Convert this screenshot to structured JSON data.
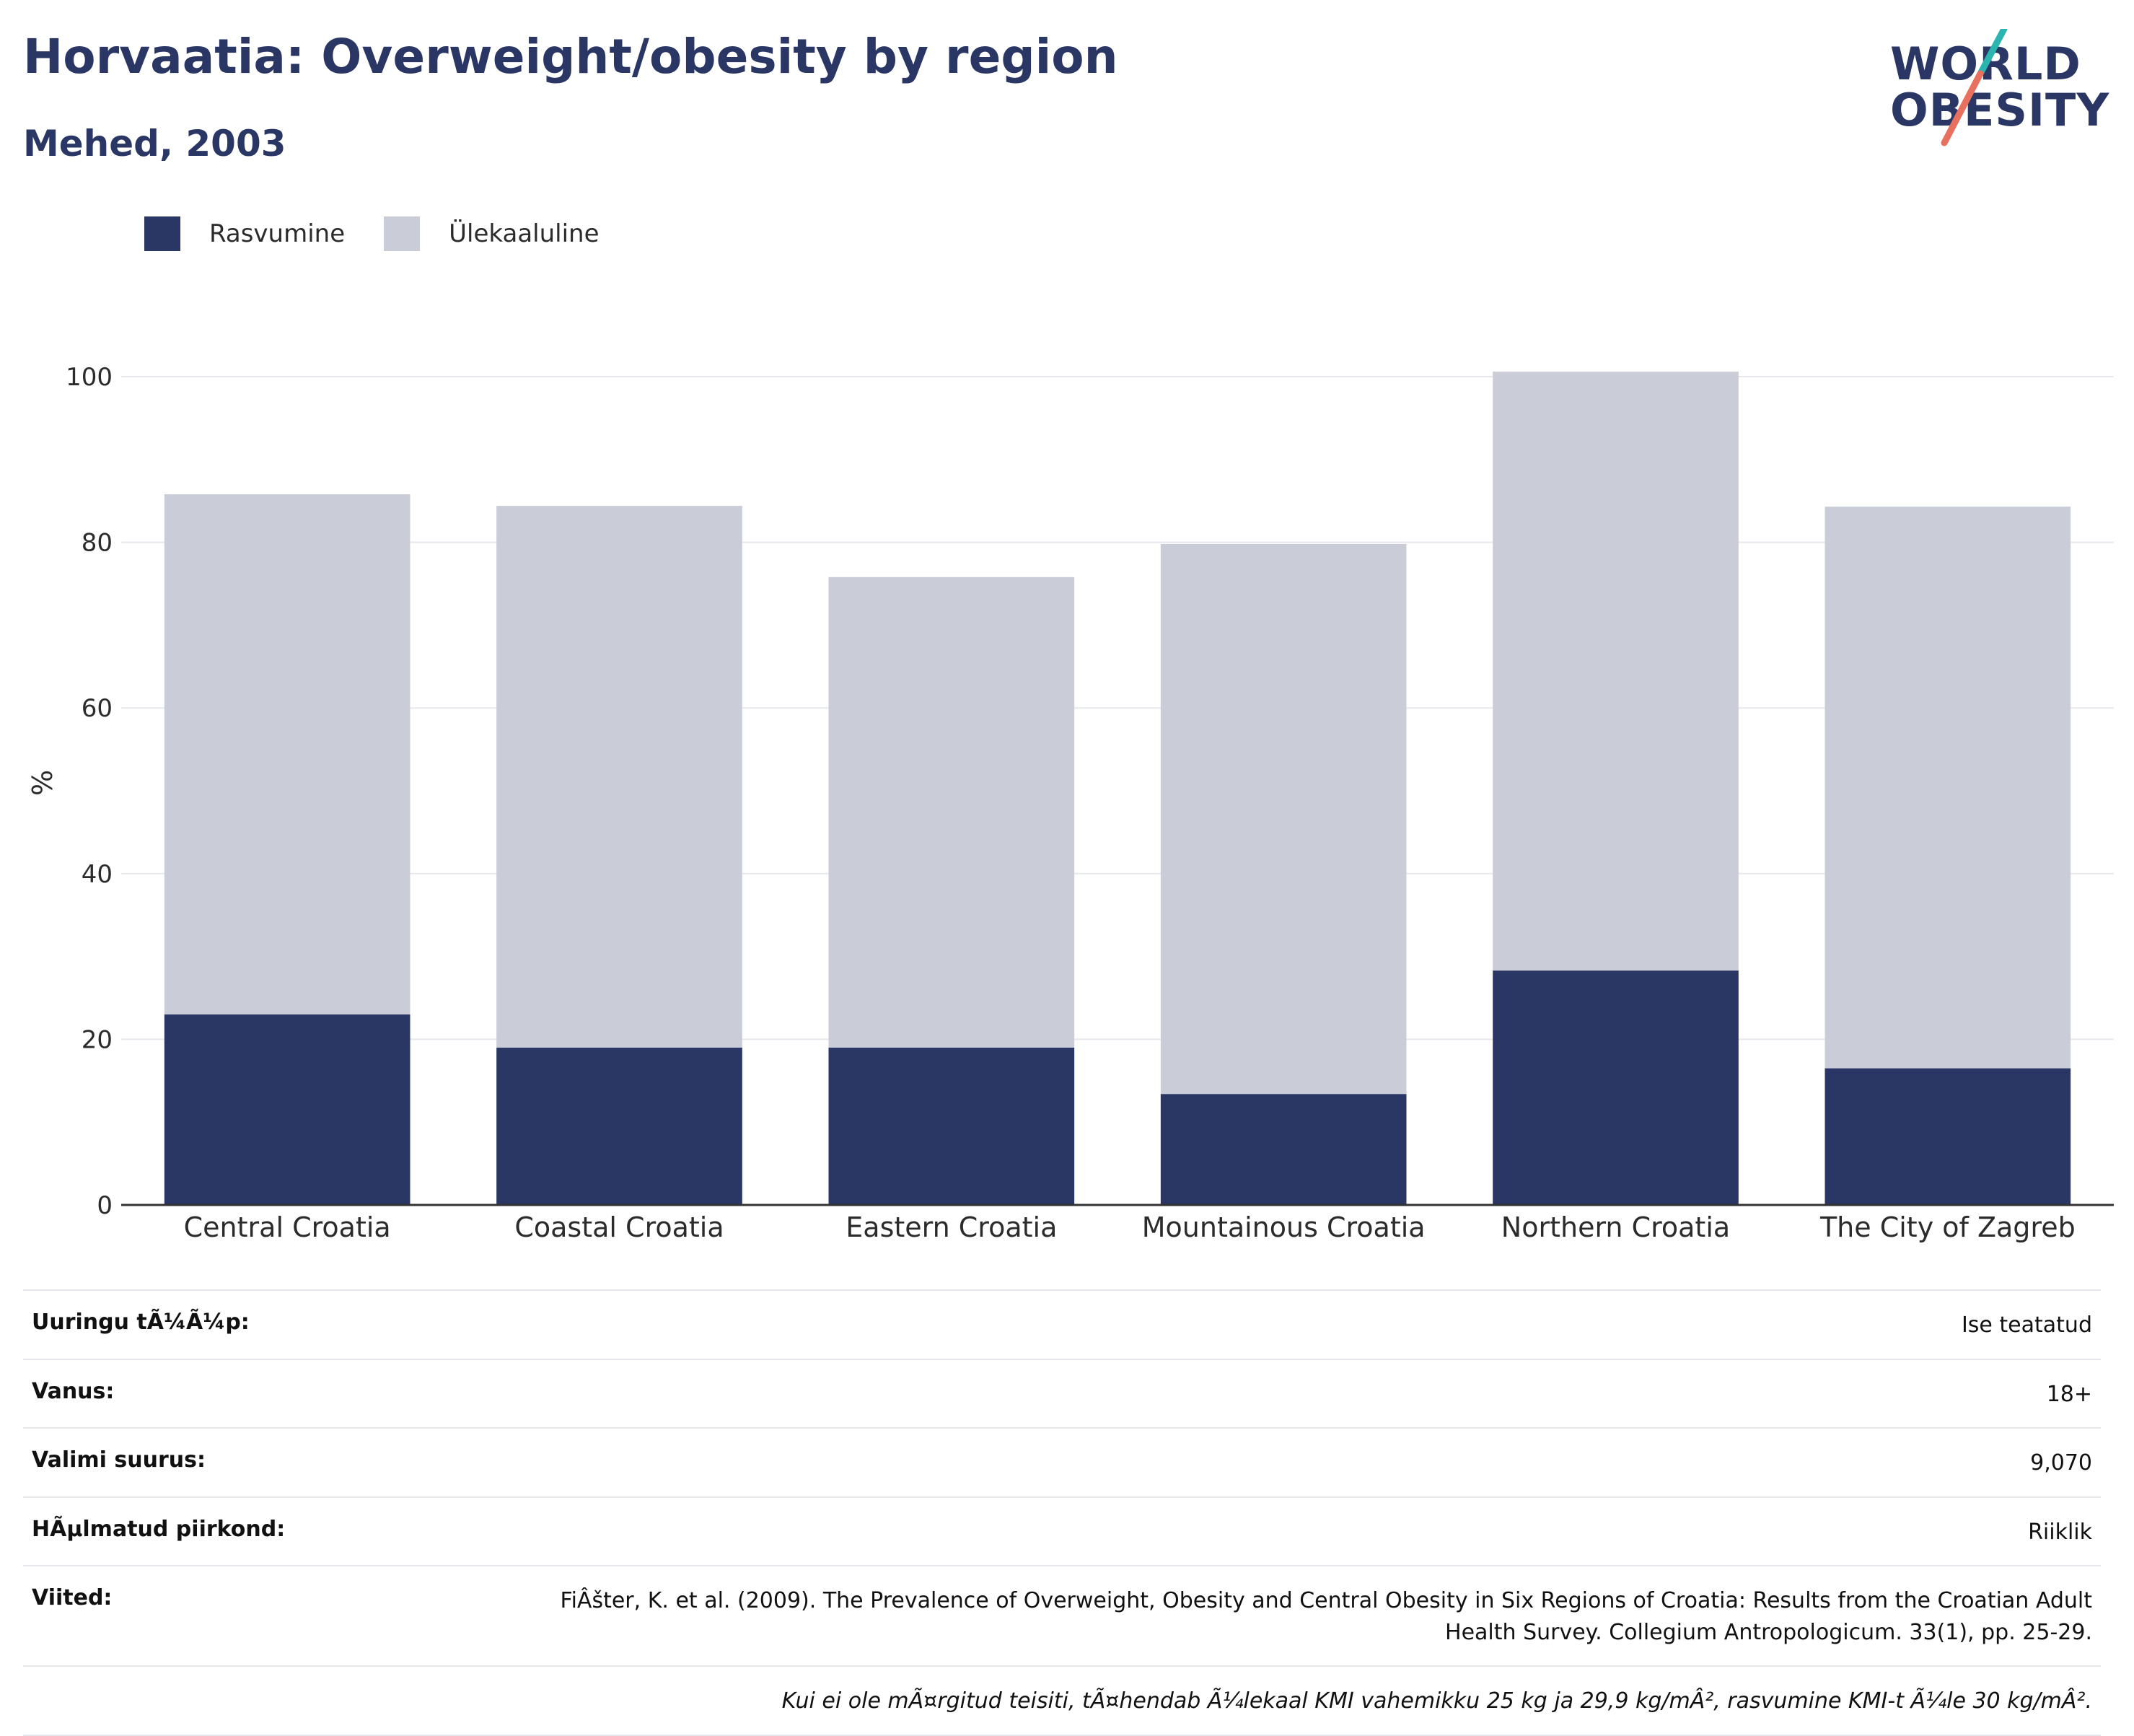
{
  "header": {
    "title": "Horvaatia: Overweight/obesity by region",
    "subtitle": "Mehed, 2003"
  },
  "logo": {
    "line1": "WORLD",
    "line2": "OBESITY",
    "alt": "World Obesity logo"
  },
  "legend": [
    {
      "label": "Rasvumine",
      "color": "#2a3663"
    },
    {
      "label": "Ülekaaluline",
      "color": "#cacdd8"
    }
  ],
  "chart_data": {
    "type": "bar",
    "stacked": true,
    "categories": [
      "Central Croatia",
      "Coastal Croatia",
      "Eastern Croatia",
      "Mountainous Croatia",
      "Northern Croatia",
      "The City of Zagreb"
    ],
    "series": [
      {
        "name": "Rasvumine",
        "color": "#2a3663",
        "values": [
          23.0,
          19.0,
          19.0,
          13.4,
          28.3,
          16.5
        ]
      },
      {
        "name": "Ülekaaluline",
        "color": "#cacdd8",
        "values": [
          62.8,
          65.4,
          56.8,
          66.4,
          72.3,
          67.8
        ]
      }
    ],
    "ylabel": "%",
    "ylim": [
      0,
      100
    ],
    "yticks": [
      0,
      20,
      40,
      60,
      80,
      100
    ],
    "grid": true,
    "legend_position": "top-left"
  },
  "details": [
    {
      "label": "Uuringu tÃ¼Ã¼p:",
      "value": "Ise teatatud"
    },
    {
      "label": "Vanus:",
      "value": "18+"
    },
    {
      "label": "Valimi suurus:",
      "value": "9,070"
    },
    {
      "label": "HÃµlmatud piirkond:",
      "value": "Riiklik"
    },
    {
      "label": "Viited:",
      "value": "FiÂšter, K. et al. (2009). The Prevalence of Overweight, Obesity and Central Obesity in Six Regions of Croatia: Results from the Croatian Adult Health Survey. Collegium Antropologicum. 33(1), pp. 25-29."
    }
  ],
  "footnote": "Kui ei ole mÃ¤rgitud teisiti, tÃ¤hendab Ã¼lekaal KMI vahemikku 25 kg ja 29,9 kg/mÂ², rasvumine KMI-t Ã¼le 30 kg/mÂ²."
}
